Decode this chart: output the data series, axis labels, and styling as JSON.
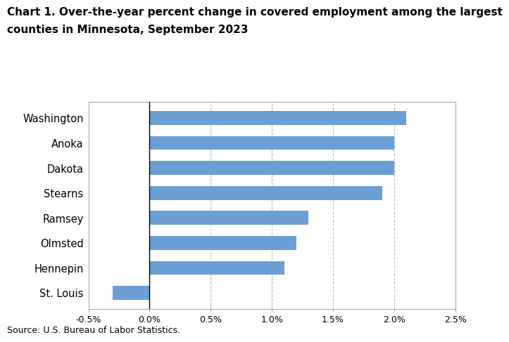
{
  "categories": [
    "Washington",
    "Anoka",
    "Dakota",
    "Stearns",
    "Ramsey",
    "Olmsted",
    "Hennepin",
    "St. Louis"
  ],
  "values": [
    2.1,
    2.0,
    2.0,
    1.9,
    1.3,
    1.2,
    1.1,
    -0.3
  ],
  "bar_color": "#6b9fd4",
  "title_line1": "Chart 1. Over-the-year percent change in covered employment among the largest",
  "title_line2": "counties in Minnesota, September 2023",
  "source": "Source: U.S. Bureau of Labor Statistics.",
  "xlim": [
    -0.5,
    2.5
  ],
  "xticks": [
    -0.5,
    0.0,
    0.5,
    1.0,
    1.5,
    2.0,
    2.5
  ],
  "xtick_labels": [
    "-0.5%",
    "0.0%",
    "0.5%",
    "1.0%",
    "1.5%",
    "2.0%",
    "2.5%"
  ],
  "title_fontsize": 11,
  "label_fontsize": 10.5,
  "tick_fontsize": 9,
  "source_fontsize": 9,
  "bar_height": 0.55,
  "background_color": "#ffffff"
}
